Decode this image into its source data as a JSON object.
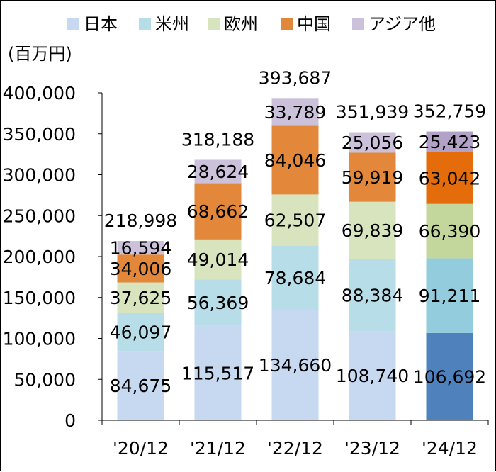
{
  "chart_data": {
    "type": "bar",
    "stacked": true,
    "unit_label": "(百万円)",
    "categories": [
      "'20/12",
      "'21/12",
      "'22/12",
      "'23/12",
      "'24/12"
    ],
    "series": [
      {
        "name": "日本",
        "color": "#c6d9f1",
        "values": [
          84675,
          115517,
          134660,
          108740,
          106692
        ]
      },
      {
        "name": "米州",
        "color": "#b7dee8",
        "values": [
          46097,
          56369,
          78684,
          88384,
          91211
        ]
      },
      {
        "name": "欧州",
        "color": "#d7e4bd",
        "values": [
          37625,
          49014,
          62507,
          69839,
          66390
        ]
      },
      {
        "name": "中国",
        "color": "#e3873b",
        "values": [
          34006,
          68662,
          84046,
          59919,
          63042
        ]
      },
      {
        "name": "アジア他",
        "color": "#ccc1da",
        "values": [
          16594,
          28624,
          33789,
          25056,
          25423
        ]
      }
    ],
    "highlight_colors": [
      "#4f81bd",
      "#93cddd",
      "#c3d69b",
      "#e46c0a",
      "#b3a2c7"
    ],
    "highlight_category_index": 4,
    "totals": [
      "218,998",
      "318,188",
      "393,687",
      "351,939",
      "352,759"
    ],
    "value_labels": [
      [
        "84,675",
        "115,517",
        "134,660",
        "108,740",
        "106,692"
      ],
      [
        "46,097",
        "56,369",
        "78,684",
        "88,384",
        "91,211"
      ],
      [
        "37,625",
        "49,014",
        "62,507",
        "69,839",
        "66,390"
      ],
      [
        "34,006",
        "68,662",
        "84,046",
        "59,919",
        "63,042"
      ],
      [
        "16,594",
        "28,624",
        "33,789",
        "25,056",
        "25,423"
      ]
    ],
    "y_ticks": [
      0,
      50000,
      100000,
      150000,
      200000,
      250000,
      300000,
      350000,
      400000
    ],
    "y_tick_labels": [
      "0",
      "50,000",
      "100,000",
      "150,000",
      "200,000",
      "250,000",
      "300,000",
      "350,000",
      "400,000"
    ],
    "ylim": [
      0,
      400000
    ],
    "grid": false,
    "legend_position": "top"
  }
}
